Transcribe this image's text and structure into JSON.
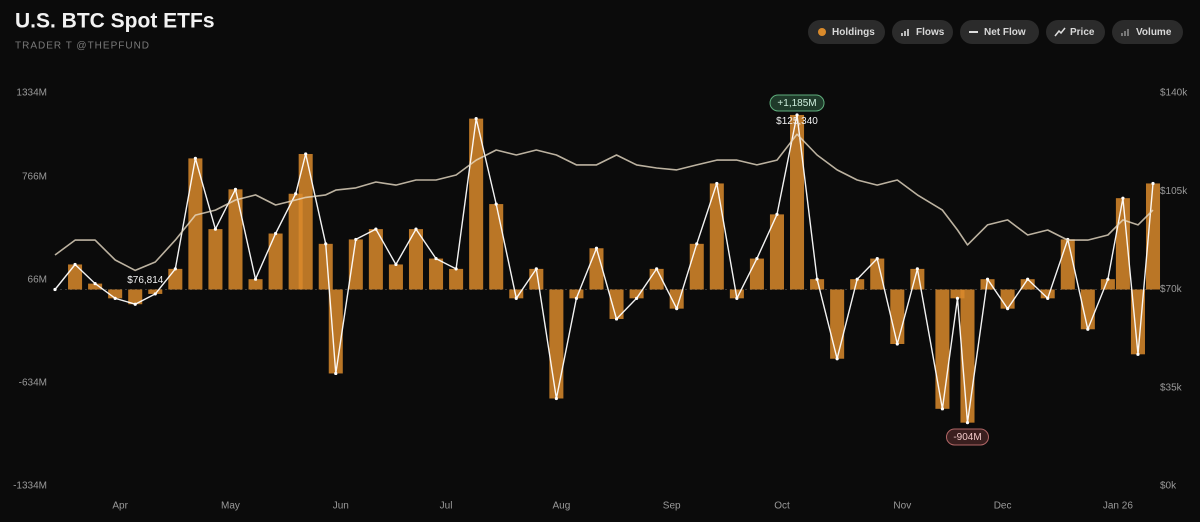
{
  "header": {
    "title": "U.S. BTC Spot ETFs",
    "subtitle": "TRADER T @THEPFUND"
  },
  "toolbar": {
    "buttons": [
      "Holdings",
      "Flows",
      "Net Flow",
      "Price",
      "Volume"
    ]
  },
  "chart_data": {
    "type": "line",
    "x": [
      0,
      4,
      8,
      12,
      16,
      20,
      24,
      28,
      32,
      36,
      40,
      44,
      48,
      50,
      54,
      56,
      60,
      64,
      68,
      72,
      76,
      80,
      84,
      88,
      92,
      96,
      100,
      104,
      108,
      112,
      116,
      120,
      124,
      128,
      132,
      136,
      140,
      144,
      148,
      152,
      156,
      160,
      164,
      168,
      172,
      177,
      180,
      182,
      186,
      190,
      194,
      198,
      202,
      206,
      210,
      213,
      216,
      219
    ],
    "xlim": [
      0,
      219
    ],
    "xticks": [
      {
        "value": 13,
        "label": "Apr"
      },
      {
        "value": 35,
        "label": "May"
      },
      {
        "value": 57,
        "label": "Jun"
      },
      {
        "value": 78,
        "label": "Jul"
      },
      {
        "value": 101,
        "label": "Aug"
      },
      {
        "value": 123,
        "label": "Sep"
      },
      {
        "value": 145,
        "label": "Oct"
      },
      {
        "value": 169,
        "label": "Nov"
      },
      {
        "value": 189,
        "label": "Dec"
      },
      {
        "value": 212,
        "label": "Jan 26"
      }
    ],
    "ylim": [
      -1334,
      1334
    ],
    "yticks": [
      {
        "value": 1334,
        "label": "1334M"
      },
      {
        "value": 766,
        "label": "766M"
      },
      {
        "value": 66,
        "label": "66M"
      },
      {
        "value": -634,
        "label": "-634M"
      },
      {
        "value": -1334,
        "label": "-1334M"
      }
    ],
    "y2lim": [
      0,
      140000
    ],
    "y2ticks": [
      {
        "value": 140000,
        "label": "$140k"
      },
      {
        "value": 105000,
        "label": "$105k"
      },
      {
        "value": 70000,
        "label": "$70k"
      },
      {
        "value": 35000,
        "label": "$35k"
      },
      {
        "value": 0,
        "label": "$0k"
      }
    ],
    "bar_color": "#d98a2b",
    "series": [
      {
        "color": "#ffffff",
        "peak_label": "+1,185M",
        "trough_label": "-904M",
        "values": [
          0,
          170,
          40,
          -60,
          -100,
          -30,
          140,
          890,
          410,
          680,
          70,
          380,
          650,
          920,
          310,
          -570,
          340,
          410,
          170,
          410,
          210,
          140,
          1160,
          580,
          -60,
          140,
          -740,
          -60,
          280,
          -200,
          -60,
          140,
          -130,
          310,
          720,
          -60,
          210,
          510,
          1185,
          70,
          -470,
          70,
          210,
          -370,
          140,
          -810,
          -60,
          -904,
          70,
          -130,
          70,
          -60,
          340,
          -270,
          70,
          620,
          -440,
          720
        ]
      },
      {
        "color": "#e8dcc6",
        "axis": "y2",
        "high_label": "$125,340",
        "low_label": "$76,814",
        "values": [
          82300,
          87600,
          87600,
          80500,
          76814,
          79800,
          87600,
          96500,
          98300,
          101900,
          103700,
          100100,
          101900,
          102800,
          103700,
          105400,
          106200,
          108300,
          107200,
          109000,
          109000,
          110800,
          116100,
          119700,
          117900,
          119700,
          117900,
          114400,
          114400,
          117900,
          114400,
          113300,
          112600,
          114400,
          116100,
          116100,
          114400,
          116100,
          125340,
          117900,
          112600,
          109000,
          107200,
          109000,
          103700,
          98300,
          91200,
          85900,
          93000,
          94800,
          89400,
          91200,
          87600,
          87600,
          89400,
          94800,
          93000,
          98300
        ]
      }
    ]
  }
}
